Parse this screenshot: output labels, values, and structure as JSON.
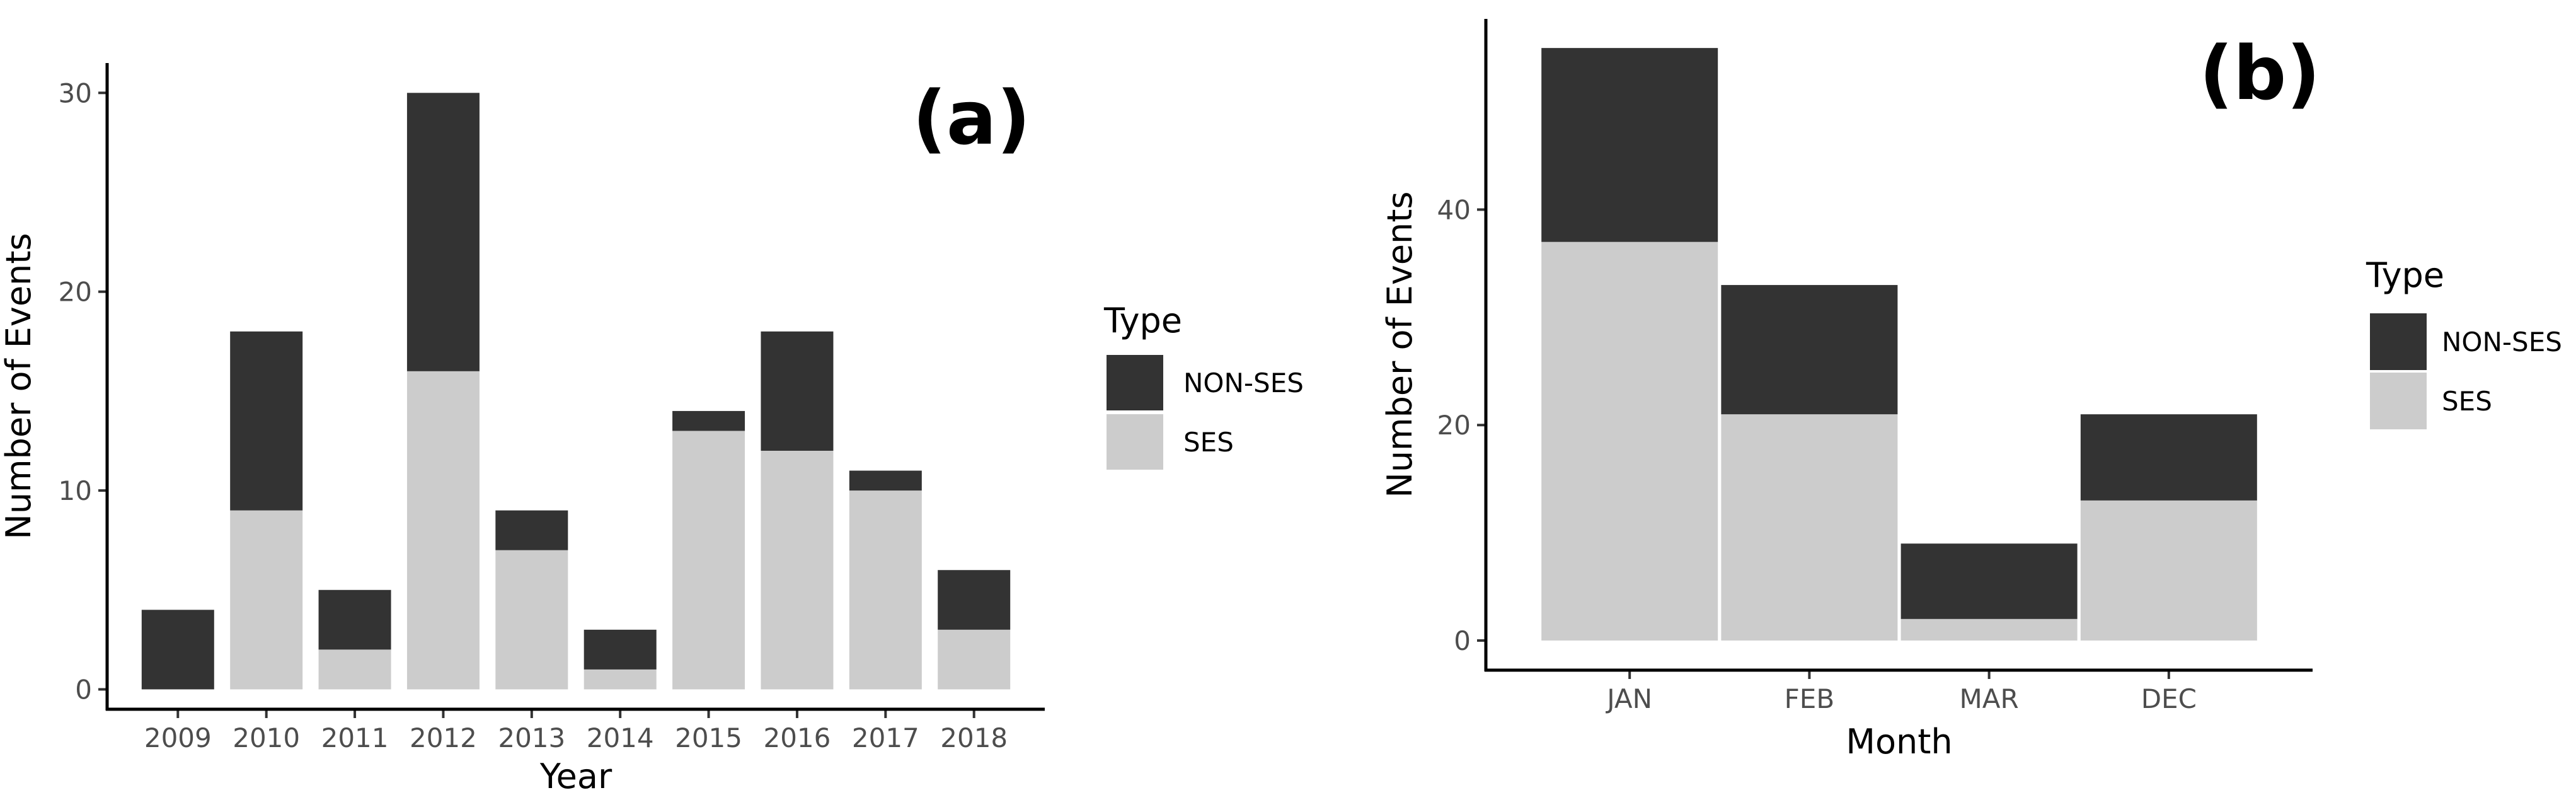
{
  "colors": {
    "non_ses": "#333333",
    "ses": "#cccccc",
    "axis": "#000000",
    "tick_text": "#4d4d4d"
  },
  "chart_data": [
    {
      "type": "bar",
      "stacked": true,
      "panel_label": "(a)",
      "xlabel": "Year",
      "ylabel": "Number of Events",
      "categories": [
        "2009",
        "2010",
        "2011",
        "2012",
        "2013",
        "2014",
        "2015",
        "2016",
        "2017",
        "2018"
      ],
      "series": [
        {
          "name": "SES",
          "values": [
            0,
            9,
            2,
            16,
            7,
            1,
            13,
            12,
            10,
            3
          ]
        },
        {
          "name": "NON-SES",
          "values": [
            4,
            9,
            3,
            14,
            2,
            2,
            1,
            6,
            1,
            3
          ]
        }
      ],
      "ylim": [
        -1,
        31.5
      ],
      "yticks": [
        "0",
        "10",
        "20",
        "30"
      ],
      "legend": {
        "title": "Type",
        "items": [
          "NON-SES",
          "SES"
        ],
        "position": "right"
      },
      "grid": false
    },
    {
      "type": "bar",
      "stacked": true,
      "panel_label": "(b)",
      "xlabel": "Month",
      "ylabel": "Number of Events",
      "categories": [
        "JAN",
        "FEB",
        "MAR",
        "DEC"
      ],
      "series": [
        {
          "name": "SES",
          "values": [
            37,
            21,
            2,
            13
          ]
        },
        {
          "name": "NON-SES",
          "values": [
            18,
            12,
            7,
            8
          ]
        }
      ],
      "ylim": [
        -2.75,
        57.7
      ],
      "yticks": [
        "0",
        "20",
        "40"
      ],
      "legend": {
        "title": "Type",
        "items": [
          "NON-SES",
          "SES"
        ],
        "position": "right"
      },
      "grid": false
    }
  ]
}
